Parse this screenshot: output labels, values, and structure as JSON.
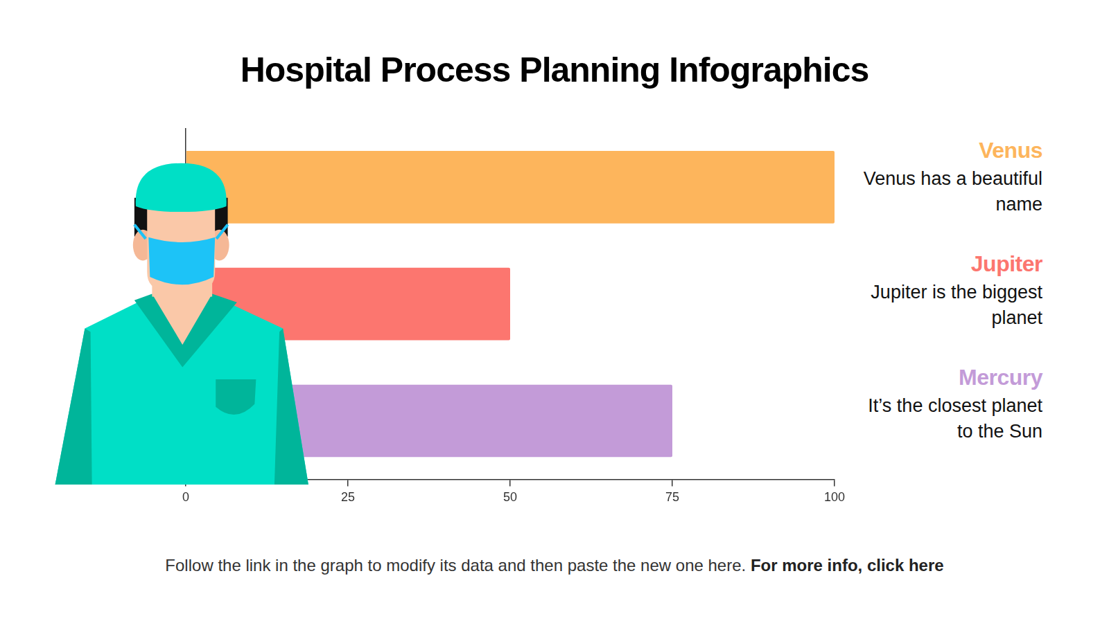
{
  "chart_data": {
    "type": "bar",
    "title": "Hospital Process Planning Infographics",
    "orientation": "horizontal",
    "categories": [
      "Venus",
      "Jupiter",
      "Mercury"
    ],
    "values": [
      100,
      50,
      75
    ],
    "colors": [
      "#fdb55c",
      "#fc766f",
      "#c39bd8"
    ],
    "descriptions": [
      "Venus has a beautiful name",
      "Jupiter is the biggest planet",
      "It’s the closest planet to the Sun"
    ],
    "xlim": [
      0,
      100
    ],
    "xticks": [
      0,
      25,
      50,
      75,
      100
    ],
    "grid": false,
    "tick_labels": "x",
    "footer": "Follow the link in the graph to modify its data and then paste the new one here.",
    "footer_link": "For more info, click here"
  }
}
